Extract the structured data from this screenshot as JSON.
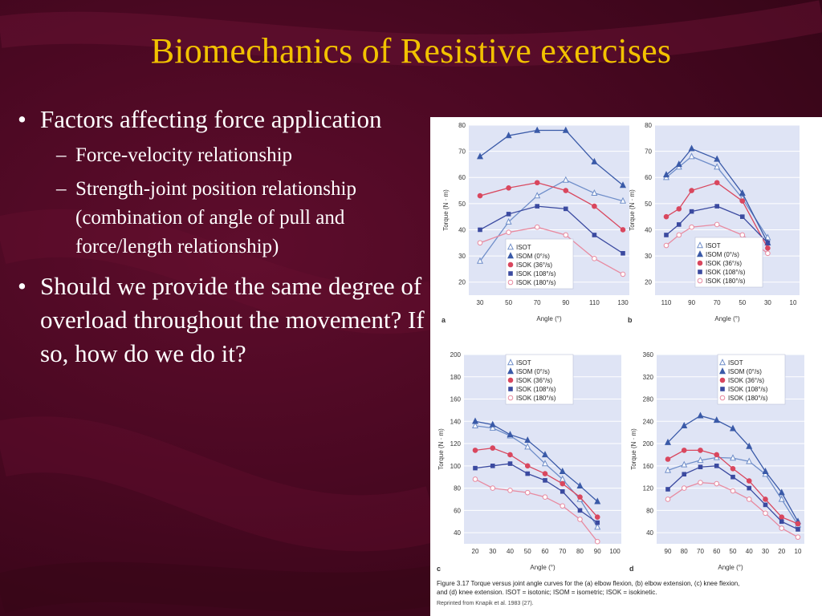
{
  "title": "Biomechanics of Resistive exercises",
  "bullets": {
    "b1": "Factors affecting force application",
    "b1_sub1": "Force-velocity relationship",
    "b1_sub2": "Strength-joint position relationship (combination of angle of pull and force/length relationship)",
    "b2": "Should we provide the same degree of overload throughout the movement?  If so, how do we do it?"
  },
  "bullet_glyph": "•",
  "dash_glyph": "–",
  "colors": {
    "title": "#f2c200",
    "background": "#4a0822",
    "ISOT": "#6f8ec9",
    "ISOM": "#3a5aa8",
    "ISOK36": "#d9475e",
    "ISOK108": "#3b4aa0",
    "ISOK180": "#e88aa0"
  },
  "figure": {
    "caption_prefix": "Figure 3.17",
    "caption_text": "Torque versus joint angle curves for the (a) elbow flexion, (b) elbow extension, (c) knee flexion, and (d) knee extension. ISOT = isotonic; ISOM = isometric; ISOK = isokinetic.",
    "credit": "Reprinted from Knapik et al. 1983 (27)."
  },
  "chart_data": [
    {
      "type": "line",
      "panel": "a",
      "xlabel": "Angle (°)",
      "ylabel": "Torque (N · m)",
      "x": [
        30,
        50,
        70,
        90,
        110,
        130
      ],
      "x_ticks": [
        30,
        50,
        70,
        90,
        110,
        130
      ],
      "y_ticks": [
        20,
        30,
        40,
        50,
        60,
        70,
        80
      ],
      "ylim": [
        15,
        80
      ],
      "legend": [
        "ISOT",
        "ISOM (0°/s)",
        "ISOK (36°/s)",
        "ISOK (108°/s)",
        "ISOK (180°/s)"
      ],
      "series": [
        {
          "name": "ISOT",
          "values": [
            28,
            43,
            53,
            59,
            54,
            51
          ]
        },
        {
          "name": "ISOM (0°/s)",
          "values": [
            68,
            76,
            78,
            78,
            66,
            57
          ]
        },
        {
          "name": "ISOK (36°/s)",
          "values": [
            53,
            56,
            58,
            55,
            49,
            40
          ]
        },
        {
          "name": "ISOK (108°/s)",
          "values": [
            40,
            46,
            49,
            48,
            38,
            31
          ]
        },
        {
          "name": "ISOK (180°/s)",
          "values": [
            35,
            39,
            41,
            38,
            29,
            23
          ]
        }
      ]
    },
    {
      "type": "line",
      "panel": "b",
      "xlabel": "Angle (°)",
      "ylabel": "Torque (N · m)",
      "x": [
        110,
        100,
        90,
        70,
        50,
        30
      ],
      "x_ticks": [
        110,
        90,
        70,
        50,
        30,
        10
      ],
      "y_ticks": [
        20,
        30,
        40,
        50,
        60,
        70,
        80
      ],
      "ylim": [
        15,
        80
      ],
      "legend": [
        "ISOT",
        "ISOM (0°/s)",
        "ISOK (36°/s)",
        "ISOK (108°/s)",
        "ISOK (180°/s)"
      ],
      "series": [
        {
          "name": "ISOT",
          "values": [
            60,
            64,
            68,
            64,
            52,
            37
          ]
        },
        {
          "name": "ISOM (0°/s)",
          "values": [
            61,
            65,
            71,
            67,
            54,
            35
          ]
        },
        {
          "name": "ISOK (36°/s)",
          "values": [
            45,
            48,
            55,
            58,
            51,
            33
          ]
        },
        {
          "name": "ISOK (108°/s)",
          "values": [
            38,
            42,
            47,
            49,
            45,
            35
          ]
        },
        {
          "name": "ISOK (180°/s)",
          "values": [
            34,
            38,
            41,
            42,
            38,
            31
          ]
        }
      ]
    },
    {
      "type": "line",
      "panel": "c",
      "xlabel": "Angle (°)",
      "ylabel": "Torque (N · m)",
      "x": [
        20,
        30,
        40,
        50,
        60,
        70,
        80,
        90
      ],
      "x_ticks": [
        20,
        30,
        40,
        50,
        60,
        70,
        80,
        90,
        100
      ],
      "y_ticks": [
        40,
        60,
        80,
        100,
        120,
        140,
        160,
        180,
        200
      ],
      "ylim": [
        30,
        200
      ],
      "legend": [
        "ISOT",
        "ISOM (0°/s)",
        "ISOK (36°/s)",
        "ISOK (108°/s)",
        "ISOK (180°/s)"
      ],
      "series": [
        {
          "name": "ISOT",
          "values": [
            136,
            134,
            127,
            117,
            102,
            88,
            70,
            45
          ]
        },
        {
          "name": "ISOM (0°/s)",
          "values": [
            140,
            137,
            128,
            123,
            110,
            95,
            82,
            68
          ]
        },
        {
          "name": "ISOK (36°/s)",
          "values": [
            114,
            116,
            110,
            100,
            93,
            84,
            72,
            54
          ]
        },
        {
          "name": "ISOK (108°/s)",
          "values": [
            98,
            100,
            102,
            93,
            87,
            77,
            60,
            49
          ]
        },
        {
          "name": "ISOK (180°/s)",
          "values": [
            88,
            80,
            78,
            76,
            72,
            64,
            52,
            32
          ]
        }
      ]
    },
    {
      "type": "line",
      "panel": "d",
      "xlabel": "Angle (°)",
      "ylabel": "Torque (N · m)",
      "x": [
        90,
        80,
        70,
        60,
        50,
        40,
        30,
        20,
        10
      ],
      "x_ticks": [
        90,
        80,
        70,
        60,
        50,
        40,
        30,
        20,
        10
      ],
      "y_ticks": [
        40,
        80,
        120,
        160,
        200,
        240,
        280,
        320,
        360
      ],
      "ylim": [
        20,
        360
      ],
      "legend": [
        "ISOT",
        "ISOM (0°/s)",
        "ISOK (36°/s)",
        "ISOK (108°/s)",
        "ISOK (180°/s)"
      ],
      "series": [
        {
          "name": "ISOT",
          "values": [
            152,
            162,
            170,
            175,
            174,
            168,
            145,
            100,
            54
          ]
        },
        {
          "name": "ISOM (0°/s)",
          "values": [
            202,
            232,
            250,
            242,
            227,
            195,
            150,
            112,
            60
          ]
        },
        {
          "name": "ISOK (36°/s)",
          "values": [
            172,
            188,
            188,
            180,
            155,
            133,
            100,
            68,
            56
          ]
        },
        {
          "name": "ISOK (108°/s)",
          "values": [
            118,
            145,
            158,
            160,
            140,
            120,
            90,
            60,
            46
          ]
        },
        {
          "name": "ISOK (180°/s)",
          "values": [
            100,
            120,
            130,
            128,
            115,
            100,
            75,
            48,
            32
          ]
        }
      ]
    }
  ]
}
